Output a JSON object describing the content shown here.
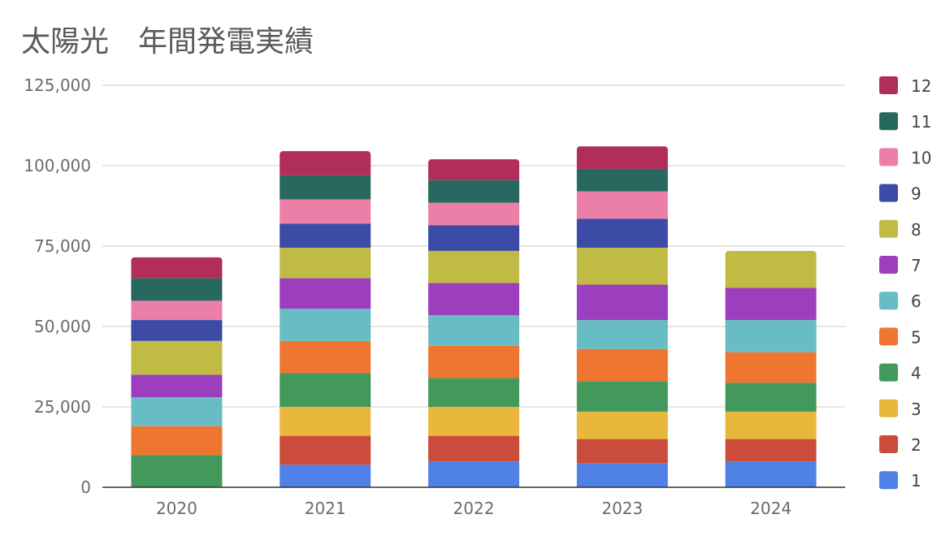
{
  "chart_data": {
    "type": "bar",
    "stacked": true,
    "title": "太陽光　年間発電実績",
    "xlabel": "",
    "ylabel": "",
    "ylim": [
      0,
      125000
    ],
    "yticks": [
      0,
      25000,
      50000,
      75000,
      100000,
      125000
    ],
    "ytick_labels": [
      "0",
      "25,000",
      "50,000",
      "75,000",
      "100,000",
      "125,000"
    ],
    "grid": true,
    "legend_position": "right",
    "categories": [
      "2020",
      "2021",
      "2022",
      "2023",
      "2024"
    ],
    "series": [
      {
        "name": "1",
        "color": "#4f81e6",
        "values": [
          0,
          7000,
          8000,
          7500,
          8000
        ]
      },
      {
        "name": "2",
        "color": "#cc4c3c",
        "values": [
          0,
          9000,
          8000,
          7500,
          7000
        ]
      },
      {
        "name": "3",
        "color": "#e9b73c",
        "values": [
          0,
          9000,
          9000,
          8500,
          8500
        ]
      },
      {
        "name": "4",
        "color": "#43995b",
        "values": [
          10000,
          10500,
          9000,
          9500,
          9000
        ]
      },
      {
        "name": "5",
        "color": "#ef7631",
        "values": [
          9000,
          10000,
          10000,
          10000,
          9500
        ]
      },
      {
        "name": "6",
        "color": "#68bcc4",
        "values": [
          9000,
          10000,
          9500,
          9000,
          10000
        ]
      },
      {
        "name": "7",
        "color": "#9c3fbf",
        "values": [
          7000,
          9500,
          10000,
          11000,
          10000
        ]
      },
      {
        "name": "8",
        "color": "#c0bb45",
        "values": [
          10500,
          9500,
          10000,
          11500,
          11500
        ]
      },
      {
        "name": "9",
        "color": "#3c4ba6",
        "values": [
          6500,
          7500,
          8000,
          9000,
          0
        ]
      },
      {
        "name": "10",
        "color": "#ec7fa8",
        "values": [
          6000,
          7500,
          7000,
          8500,
          0
        ]
      },
      {
        "name": "11",
        "color": "#27695e",
        "values": [
          7000,
          7500,
          7000,
          7000,
          0
        ]
      },
      {
        "name": "12",
        "color": "#b12e59",
        "values": [
          6500,
          7500,
          6500,
          7000,
          0
        ]
      }
    ]
  }
}
